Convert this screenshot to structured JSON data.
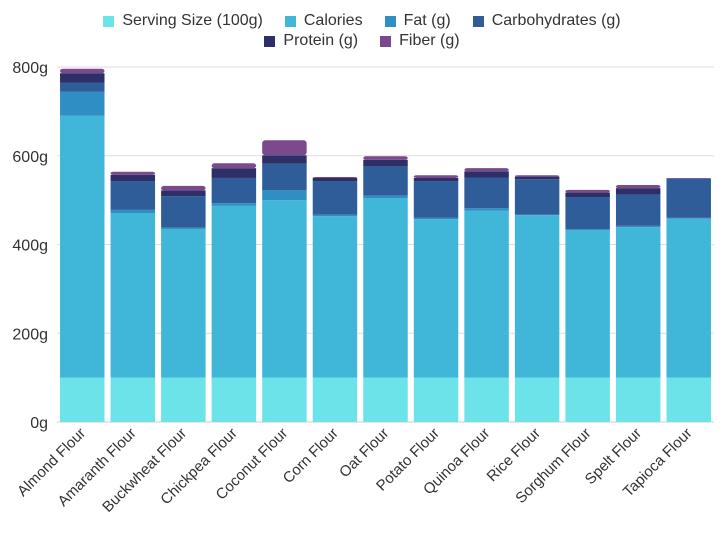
{
  "chart_data": {
    "type": "bar",
    "stacked": true,
    "title": "",
    "xlabel": "",
    "ylabel": "",
    "ylim": [
      0,
      800
    ],
    "yticks": [
      "0g",
      "200g",
      "400g",
      "600g",
      "800g"
    ],
    "ytick_values": [
      0,
      200,
      400,
      600,
      800
    ],
    "grid": true,
    "legend_position": "top",
    "categories": [
      "Almond Flour",
      "Amaranth Flour",
      "Buckwheat Flour",
      "Chickpea Flour",
      "Coconut Flour",
      "Corn Flour",
      "Oat Flour",
      "Potato Flour",
      "Quinoa Flour",
      "Rice Flour",
      "Sorghum Flour",
      "Spelt Flour",
      "Tapioca Flour"
    ],
    "series": [
      {
        "name": "Serving Size (100g)",
        "color": "#6be3e8",
        "values": [
          100,
          100,
          100,
          100,
          100,
          100,
          100,
          100,
          100,
          100,
          100,
          100,
          100
        ]
      },
      {
        "name": "Calories",
        "color": "#40b6d8",
        "values": [
          590,
          371,
          335,
          387,
          400,
          364,
          404,
          357,
          376,
          366,
          332,
          339,
          358
        ]
      },
      {
        "name": "Fat (g)",
        "color": "#2f8fc4",
        "values": [
          54,
          7,
          3,
          6,
          22,
          3,
          6,
          3,
          6,
          1,
          3,
          3,
          2
        ]
      },
      {
        "name": "Carbohydrates (g)",
        "color": "#2e5d9a",
        "values": [
          21,
          65,
          71,
          57,
          60,
          76,
          66,
          83,
          69,
          80,
          72,
          70,
          88
        ]
      },
      {
        "name": "Protein (g)",
        "color": "#2d2f66",
        "values": [
          21,
          14,
          13,
          22,
          19,
          7,
          15,
          7,
          14,
          6,
          10,
          15,
          1
        ]
      },
      {
        "name": "Fiber (g)",
        "color": "#7a4a8c",
        "values": [
          10,
          7,
          10,
          11,
          34,
          2,
          8,
          6,
          7,
          3,
          6,
          7,
          1
        ]
      }
    ]
  }
}
